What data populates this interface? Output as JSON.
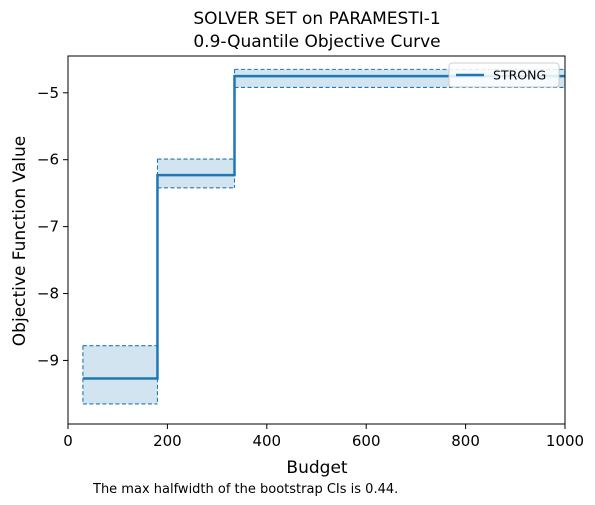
{
  "chart_data": {
    "type": "line",
    "title": [
      "SOLVER SET on PARAMESTI-1",
      "0.9-Quantile Objective Curve"
    ],
    "xlabel": "Budget",
    "ylabel": "Objective Function Value",
    "xlim": [
      0,
      1000
    ],
    "ylim": [
      -9.95,
      -4.45
    ],
    "xticks": [
      0,
      200,
      400,
      600,
      800,
      1000
    ],
    "yticks": [
      -9,
      -8,
      -7,
      -6,
      -5
    ],
    "xtick_labels": [
      "0",
      "200",
      "400",
      "600",
      "800",
      "1000"
    ],
    "ytick_labels": [
      "−9",
      "−8",
      "−7",
      "−6",
      "−5"
    ],
    "grid": false,
    "legend_position": "top-right",
    "series": [
      {
        "name": "STRONG",
        "color": "#1f77b4",
        "steps": [
          {
            "x0": 30,
            "x1": 180,
            "y": -9.27,
            "ci_low": -9.65,
            "ci_high": -8.78
          },
          {
            "x0": 180,
            "x1": 335,
            "y": -6.23,
            "ci_low": -6.42,
            "ci_high": -5.99
          },
          {
            "x0": 335,
            "x1": 1000,
            "y": -4.75,
            "ci_low": -4.92,
            "ci_high": -4.65
          }
        ]
      }
    ],
    "annotation": "The max halfwidth of the bootstrap CIs is 0.44."
  }
}
